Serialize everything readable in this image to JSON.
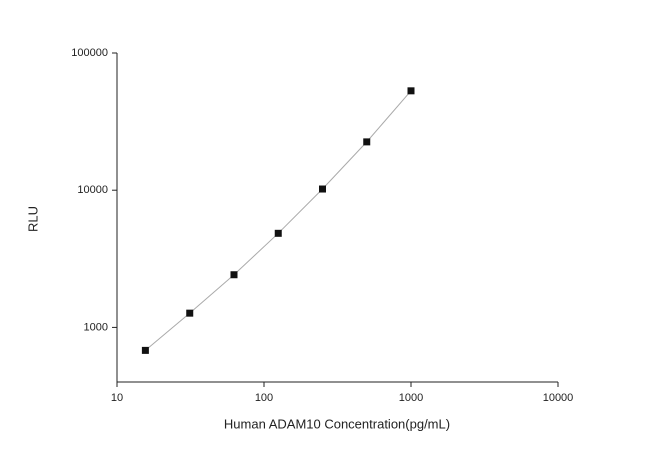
{
  "chart_data": {
    "type": "scatter",
    "x_label": "Human ADAM10 Concentration(pg/mL)",
    "y_label": "RLU",
    "x": [
      15.6,
      31.25,
      62.5,
      125,
      250,
      500,
      1000
    ],
    "series": [
      {
        "color": "#111111",
        "values": [
          680,
          1270,
          2420,
          4850,
          10200,
          22500,
          53000
        ]
      }
    ],
    "xlim": [
      10,
      10000
    ],
    "ylim": [
      400,
      100000
    ],
    "xticks": [
      10,
      100,
      1000,
      10000
    ],
    "yticks": [
      1000,
      10000,
      100000
    ],
    "x_log": true,
    "y_log": true,
    "fit_line": true,
    "fit_color": "#aaaaaa"
  }
}
